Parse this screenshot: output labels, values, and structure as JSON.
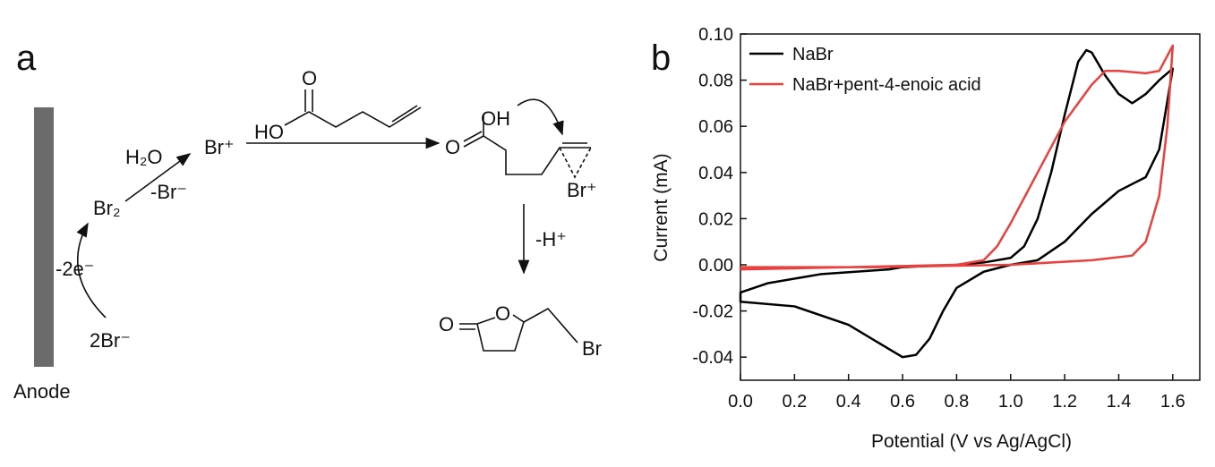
{
  "scheme": {
    "panel": "a",
    "electrode": "Anode",
    "bromide": "2Br⁻",
    "electrons": "-2e⁻",
    "bromine": "Br₂",
    "water": "H₂O",
    "loss": "-Br⁻",
    "bromonium": "Br⁺",
    "deprotonation": "-H⁺",
    "substrate_atoms": [
      "O",
      "HO"
    ],
    "intermediate_atoms": [
      "O",
      "OH",
      "Br⁺"
    ],
    "product_atoms": [
      "O",
      "O",
      "Br"
    ]
  },
  "chart_data": {
    "type": "line",
    "panel": "b",
    "x_label": "Potential (V vs Ag/AgCl)",
    "y_label": "Current (mA)",
    "xlim": [
      0,
      1.7
    ],
    "ylim": [
      -0.05,
      0.1
    ],
    "xticks": [
      {
        "value": 0,
        "label": "0.0"
      },
      0.2,
      0.4,
      0.6,
      0.8,
      {
        "value": 1,
        "label": "1.0"
      },
      1.2,
      1.4,
      1.6
    ],
    "yticks": [
      {
        "value": 0.1,
        "label": "0.10"
      },
      0.08,
      0.06,
      0.04,
      0.02,
      {
        "value": 0,
        "label": "0.00"
      },
      -0.02,
      -0.04
    ],
    "legend": "top-left",
    "series": [
      {
        "name": "NaBr",
        "color": "#000000",
        "x": [
          0.55,
          0.3,
          0.1,
          0,
          0,
          0.2,
          0.4,
          0.5,
          0.6,
          0.65,
          0.7,
          0.75,
          0.8,
          0.9,
          1.0,
          1.1,
          1.2,
          1.3,
          1.4,
          1.5,
          1.55,
          1.6,
          1.55,
          1.5,
          1.45,
          1.4,
          1.35,
          1.3,
          1.28,
          1.25,
          1.2,
          1.15,
          1.1,
          1.05,
          1.0,
          0.9,
          0.8,
          0.6,
          0.55
        ],
        "values": [
          -0.002,
          -0.004,
          -0.008,
          -0.012,
          -0.016,
          -0.018,
          -0.026,
          -0.033,
          -0.04,
          -0.039,
          -0.032,
          -0.02,
          -0.01,
          -0.003,
          0,
          0.002,
          0.01,
          0.022,
          0.032,
          0.038,
          0.05,
          0.085,
          0.08,
          0.074,
          0.07,
          0.074,
          0.082,
          0.092,
          0.093,
          0.088,
          0.065,
          0.04,
          0.02,
          0.008,
          0.003,
          0.001,
          0,
          -0.001,
          -0.002
        ]
      },
      {
        "name": "NaBr+pent-4-enoic acid",
        "color": "#e8413f",
        "x": [
          0,
          0.4,
          0.8,
          0.9,
          0.95,
          1.0,
          1.1,
          1.2,
          1.3,
          1.35,
          1.4,
          1.5,
          1.55,
          1.6,
          1.58,
          1.55,
          1.5,
          1.45,
          1.3,
          1.0,
          0.5,
          0
        ],
        "values": [
          -0.002,
          -0.001,
          0,
          0.002,
          0.008,
          0.018,
          0.04,
          0.062,
          0.078,
          0.084,
          0.084,
          0.083,
          0.084,
          0.095,
          0.06,
          0.03,
          0.01,
          0.004,
          0.002,
          0,
          -0.001,
          -0.001
        ]
      }
    ]
  }
}
